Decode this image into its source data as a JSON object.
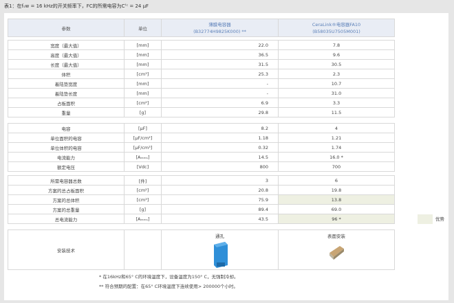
{
  "caption": "表1：在fₛw = 16 kHz的开关频率下，FC的所需电容为Cᶠᶜ = 24 µF",
  "header": {
    "param": "参数",
    "unit": "单位",
    "film_name": "薄膜电容器",
    "film_code": "(B32774H9825K000) **",
    "cera_name": "CeraLink®电容器FA10",
    "cera_code": "(B58035U7505M001)"
  },
  "groups": [
    [
      [
        "宽度（最大值）",
        "[mm]",
        "22.0",
        "7.8"
      ],
      [
        "高度（最大值）",
        "[mm]",
        "36.5",
        "9.6"
      ],
      [
        "长度（最大值）",
        "[mm]",
        "31.5",
        "30.5"
      ],
      [
        "体积",
        "[cm³]",
        "25.3",
        "2.3"
      ],
      [
        "着陆垫宽度",
        "[mm]",
        "-",
        "10.7"
      ],
      [
        "着陆垫长度",
        "[mm]",
        "-",
        "31.0"
      ],
      [
        "占板面积",
        "[cm²]",
        "6.9",
        "3.3"
      ],
      [
        "重量",
        "[g]",
        "29.8",
        "11.5"
      ]
    ],
    [
      [
        "电容",
        "[µF]",
        "8.2",
        "4"
      ],
      [
        "单位面积的电容",
        "[µF/cm²]",
        "1.18",
        "1.21"
      ],
      [
        "单位体积的电容",
        "[µF/cm³]",
        "0.32",
        "1.74"
      ],
      [
        "电流能力",
        "[Aₘₘₛ]",
        "14.5",
        "16.0 *"
      ],
      [
        "额定电压",
        "[Vdc]",
        "800",
        "700"
      ]
    ],
    [
      [
        "所需电容器总数",
        "[件]",
        "3",
        "6"
      ],
      [
        "方案的总占板面积",
        "[cm²]",
        "20.8",
        "19.8"
      ],
      [
        "方案的总体积",
        "[cm³]",
        "75.9",
        "13.8"
      ],
      [
        "方案的总重量",
        "[g]",
        "89.4",
        "69.0"
      ],
      [
        "总电流能力",
        "[Aₘₘₛ]",
        "43.5",
        "96 *"
      ]
    ]
  ],
  "highlight_rows": [
    [
      2,
      2
    ],
    [
      2,
      4
    ]
  ],
  "highlight_color": "#eef0e2",
  "install": {
    "label": "安装技术",
    "film": "通孔",
    "cera": "表面安装"
  },
  "legend": "优势",
  "notes": [
    "* 在16kHz和65° C的环境温度下，设备温度为150° C，无强制冷却。",
    "** 符合预期的配置：在65° C环境温度下连续使用> 200000个小时。"
  ]
}
